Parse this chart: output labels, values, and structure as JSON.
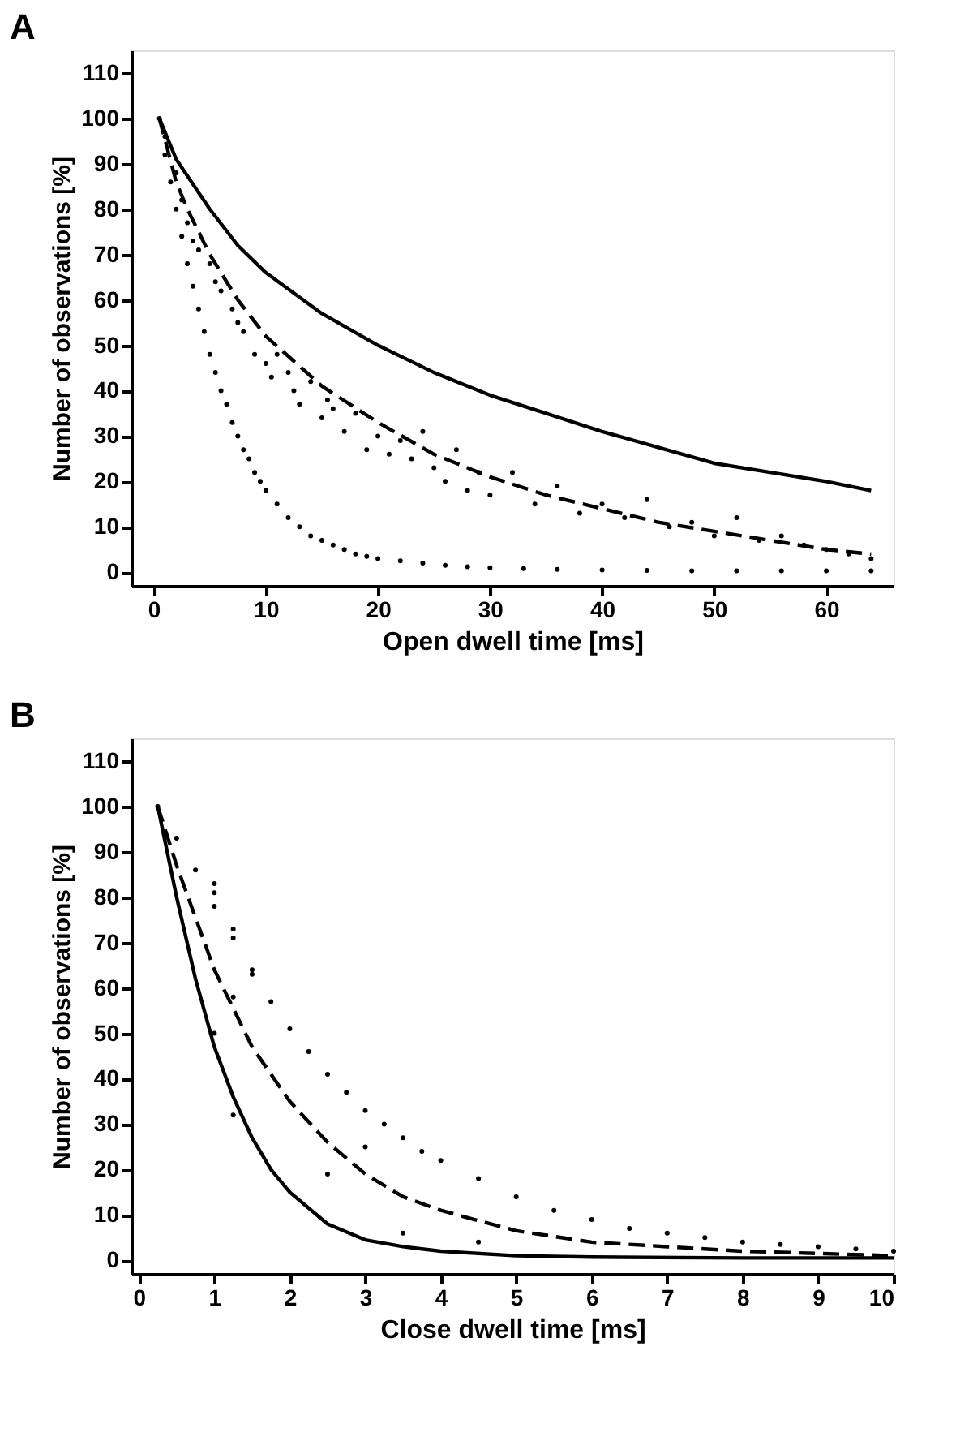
{
  "chart_data": [
    {
      "type": "line",
      "title": "A",
      "xlabel": "Open dwell time [ms]",
      "ylabel": "Number of observations [%]",
      "xlim": [
        -2,
        66
      ],
      "ylim": [
        -3,
        115
      ],
      "xticks": [
        0,
        10,
        20,
        30,
        40,
        50,
        60
      ],
      "yticks": [
        0,
        10,
        20,
        30,
        40,
        50,
        60,
        70,
        80,
        90,
        100,
        110
      ],
      "grid": false,
      "series": [
        {
          "line_style": "solid",
          "color": "#000000",
          "x": [
            0.5,
            2,
            5,
            7.5,
            10,
            15,
            20,
            25,
            30,
            35,
            40,
            45,
            50,
            55,
            60,
            64
          ],
          "values": [
            100,
            91,
            80,
            72,
            66,
            57,
            50,
            44,
            39,
            35,
            31,
            27.5,
            24,
            22,
            20,
            18
          ]
        },
        {
          "line_style": "dashed",
          "color": "#000000",
          "x": [
            0.5,
            2,
            3,
            5,
            7.5,
            10,
            15,
            20,
            25,
            30,
            35,
            40,
            45,
            50,
            55,
            60,
            64
          ],
          "values": [
            100,
            86,
            80,
            70,
            60,
            52,
            41,
            33,
            26,
            21,
            17,
            14,
            11,
            9,
            7,
            5,
            4
          ]
        },
        {
          "type": "scatter",
          "marker": "circle",
          "color": "#000000",
          "x": [
            1,
            2,
            2.5,
            3,
            3.5,
            4,
            5,
            5.5,
            6,
            7,
            7.5,
            8,
            9,
            10,
            10.5,
            11,
            12,
            12.5,
            13,
            14,
            15,
            15.5,
            16,
            17,
            18,
            19,
            20,
            21,
            22,
            23,
            24,
            25,
            26,
            27,
            28,
            29,
            30,
            32,
            34,
            36,
            38,
            40,
            42,
            44,
            46,
            48,
            50,
            52,
            54,
            56,
            58,
            60,
            62,
            64
          ],
          "values": [
            96,
            88,
            82,
            77,
            73,
            71,
            68,
            64,
            62,
            58,
            55,
            53,
            48,
            46,
            43,
            48,
            44,
            40,
            37,
            42,
            34,
            38,
            36,
            31,
            35,
            27,
            30,
            26,
            29,
            25,
            31,
            23,
            20,
            27,
            18,
            22,
            17,
            22,
            15,
            19,
            13,
            15,
            12,
            16,
            10,
            11,
            8,
            12,
            7,
            8,
            6,
            5,
            4,
            3
          ]
        },
        {
          "type": "scatter",
          "marker": "circle",
          "color": "#000000",
          "x": [
            0.5,
            1,
            1.5,
            2,
            2.5,
            3,
            3.5,
            4,
            4.5,
            5,
            5.5,
            6,
            6.5,
            7,
            7.5,
            8,
            8.5,
            9,
            9.5,
            10,
            11,
            12,
            13,
            14,
            15,
            16,
            17,
            18,
            19,
            20,
            22,
            24,
            26,
            28,
            30,
            33,
            36,
            40,
            44,
            48,
            52,
            56,
            60,
            64
          ],
          "values": [
            100,
            92,
            86,
            80,
            74,
            68,
            63,
            58,
            53,
            48,
            44,
            40,
            37,
            33,
            30,
            27,
            25,
            22,
            20,
            18,
            15,
            12,
            10,
            8,
            7,
            6,
            5,
            4,
            3.5,
            3,
            2.5,
            2,
            1.5,
            1.2,
            1,
            0.8,
            0.6,
            0.5,
            0.4,
            0.3,
            0.3,
            0.3,
            0.3,
            0.3
          ]
        }
      ]
    },
    {
      "type": "line",
      "title": "B",
      "xlabel": "Close dwell time [ms]",
      "ylabel": "Number of observations [%]",
      "xlim": [
        -0.1,
        10
      ],
      "ylim": [
        -3,
        115
      ],
      "xticks": [
        0,
        1,
        2,
        3,
        4,
        5,
        6,
        7,
        8,
        9,
        10
      ],
      "yticks": [
        0,
        10,
        20,
        30,
        40,
        50,
        60,
        70,
        80,
        90,
        100,
        110
      ],
      "grid": false,
      "series": [
        {
          "line_style": "solid",
          "color": "#000000",
          "x": [
            0.25,
            0.5,
            0.75,
            1,
            1.25,
            1.5,
            1.75,
            2,
            2.5,
            3,
            3.5,
            4,
            5,
            6,
            8,
            10
          ],
          "values": [
            100,
            80,
            62,
            47,
            36,
            27,
            20,
            15,
            8,
            4.5,
            3,
            2,
            1,
            0.7,
            0.5,
            0.5
          ]
        },
        {
          "line_style": "dashed",
          "color": "#000000",
          "x": [
            0.25,
            0.5,
            1,
            1.5,
            2,
            2.5,
            3,
            3.5,
            4,
            5,
            6,
            7,
            8,
            9,
            10
          ],
          "values": [
            100,
            87,
            64,
            47,
            35,
            26,
            19,
            14,
            11,
            6.5,
            4,
            3,
            2,
            1.5,
            1
          ]
        },
        {
          "type": "scatter",
          "marker": "circle",
          "color": "#000000",
          "x": [
            0.25,
            0.5,
            0.75,
            1,
            1.25,
            1.5,
            1.75,
            2,
            2.25,
            2.5,
            2.75,
            3,
            3.25,
            3.5,
            3.75,
            4,
            4.5,
            5,
            5.5,
            6,
            6.5,
            7,
            7.5,
            8,
            8.5,
            9,
            9.5,
            10
          ],
          "values": [
            100,
            93,
            86,
            78,
            71,
            63,
            57,
            51,
            46,
            41,
            37,
            33,
            30,
            27,
            24,
            22,
            18,
            14,
            11,
            9,
            7,
            6,
            5,
            4,
            3.5,
            3,
            2.5,
            2
          ]
        },
        {
          "type": "scatter",
          "marker": "circle",
          "color": "#000000",
          "x": [
            1,
            1,
            1.25,
            1.25,
            1.5,
            1,
            1.25,
            2.5,
            3,
            3.5,
            4.5
          ],
          "values": [
            83,
            81,
            73,
            58,
            64,
            50,
            32,
            19,
            25,
            6,
            4
          ]
        }
      ]
    }
  ]
}
